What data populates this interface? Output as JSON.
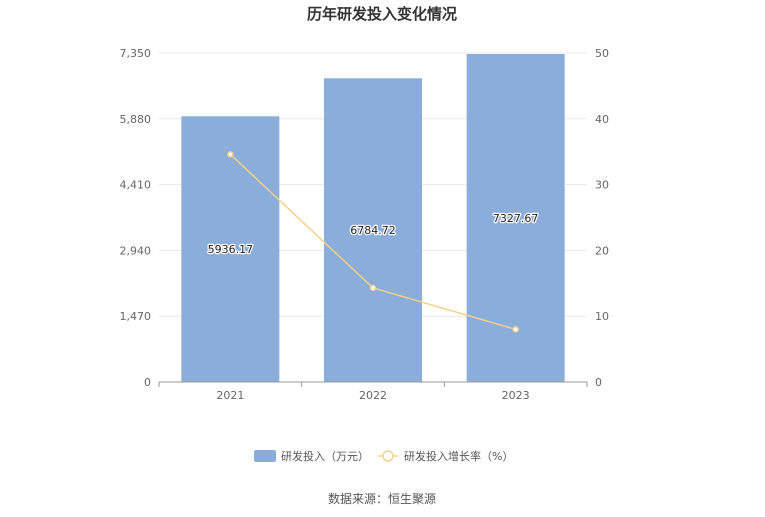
{
  "chart_data": {
    "type": "bar",
    "title": "历年研发投入变化情况",
    "categories": [
      "2021",
      "2022",
      "2023"
    ],
    "series": [
      {
        "name": "研发投入（万元）",
        "type": "bar",
        "axis": "left",
        "values": [
          5936.17,
          6784.72,
          7327.67
        ],
        "color": "#8badd9"
      },
      {
        "name": "研发投入增长率（%）",
        "type": "line",
        "axis": "right",
        "values": [
          34.6,
          14.3,
          8.0
        ],
        "color": "#f6d08e"
      }
    ],
    "data_labels": [
      "5936.17",
      "6784.72",
      "7327.67"
    ],
    "y_left": {
      "ticks": [
        "0",
        "1,470",
        "2,940",
        "4,410",
        "5,880",
        "7,350"
      ],
      "ylim": [
        0,
        7350
      ]
    },
    "y_right": {
      "ticks": [
        "0",
        "10",
        "20",
        "30",
        "40",
        "50"
      ],
      "ylim": [
        0,
        50
      ]
    },
    "grid": true,
    "legend_position": "bottom"
  },
  "source": "数据来源：恒生聚源"
}
